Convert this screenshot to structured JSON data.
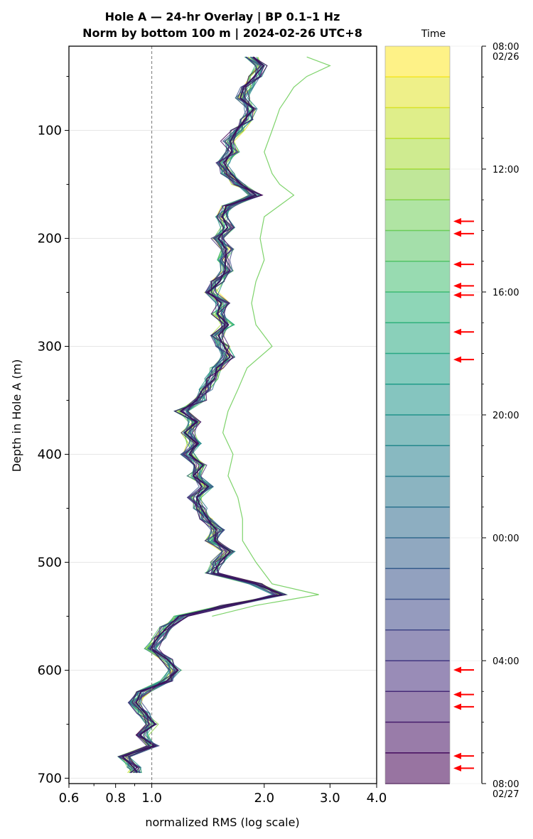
{
  "chart_data": {
    "type": "line",
    "title_line1": "Hole A — 24-hr Overlay  |  BP 0.1–1 Hz",
    "title_line2": "Norm by bottom 100 m  |  2024-02-26 UTC+8",
    "xlabel": "normalized RMS  (log scale)",
    "ylabel": "Depth in Hole A (m)",
    "xscale": "log",
    "xlim": [
      0.6,
      4.0
    ],
    "ylim": [
      705,
      22
    ],
    "y_inverted": true,
    "xticks": [
      0.6,
      0.8,
      1.0,
      2.0,
      3.0,
      4.0
    ],
    "xtick_labels": [
      "0.6",
      "0.8",
      "1.0",
      "2.0",
      "3.0",
      "4.0"
    ],
    "yticks": [
      100,
      200,
      300,
      400,
      500,
      600,
      700
    ],
    "ytick_labels": [
      "100",
      "200",
      "300",
      "400",
      "500",
      "600",
      "700"
    ],
    "reference_line_x": 1.0,
    "grid": "horizontal",
    "num_curves": 24,
    "curve_colormap": "viridis (yellow = earliest, dark purple = latest)",
    "representative_profile": {
      "depth": [
        32,
        40,
        50,
        60,
        70,
        80,
        90,
        100,
        110,
        120,
        130,
        140,
        150,
        160,
        170,
        180,
        190,
        200,
        210,
        220,
        230,
        240,
        250,
        260,
        270,
        280,
        290,
        300,
        310,
        320,
        330,
        340,
        350,
        360,
        370,
        380,
        390,
        400,
        410,
        420,
        430,
        440,
        450,
        460,
        470,
        480,
        490,
        500,
        510,
        520,
        530,
        540,
        550,
        560,
        570,
        580,
        590,
        600,
        610,
        620,
        630,
        640,
        650,
        660,
        670,
        680,
        690,
        695
      ],
      "value": [
        1.85,
        1.95,
        1.9,
        1.8,
        1.75,
        1.85,
        1.8,
        1.7,
        1.6,
        1.65,
        1.55,
        1.6,
        1.7,
        1.9,
        1.6,
        1.55,
        1.6,
        1.5,
        1.6,
        1.55,
        1.6,
        1.5,
        1.45,
        1.55,
        1.5,
        1.6,
        1.5,
        1.55,
        1.6,
        1.5,
        1.45,
        1.4,
        1.35,
        1.2,
        1.3,
        1.25,
        1.3,
        1.25,
        1.35,
        1.3,
        1.4,
        1.3,
        1.35,
        1.4,
        1.5,
        1.45,
        1.6,
        1.5,
        1.45,
        1.9,
        2.2,
        1.6,
        1.2,
        1.1,
        1.05,
        1.0,
        1.1,
        1.15,
        1.1,
        0.95,
        0.9,
        0.95,
        1.0,
        0.95,
        1.0,
        0.85,
        0.9,
        0.9
      ]
    },
    "outlier_profile": {
      "depth": [
        32,
        40,
        50,
        60,
        70,
        80,
        90,
        100,
        120,
        140,
        150,
        160,
        180,
        200,
        220,
        240,
        260,
        280,
        300,
        320,
        340,
        360,
        380,
        400,
        420,
        440,
        460,
        480,
        500,
        520,
        530,
        540,
        550
      ],
      "value": [
        2.6,
        3.0,
        2.6,
        2.4,
        2.3,
        2.2,
        2.15,
        2.1,
        2.0,
        2.1,
        2.2,
        2.4,
        2.0,
        1.95,
        2.0,
        1.9,
        1.85,
        1.9,
        2.1,
        1.8,
        1.7,
        1.6,
        1.55,
        1.65,
        1.6,
        1.7,
        1.75,
        1.75,
        1.9,
        2.1,
        2.8,
        1.9,
        1.45
      ]
    },
    "colorbar": {
      "label": "Time",
      "tick_labels": [
        {
          "time": "08:00",
          "date": "02/26",
          "hours": 0
        },
        {
          "time": "12:00",
          "date": "",
          "hours": 4
        },
        {
          "time": "16:00",
          "date": "",
          "hours": 8
        },
        {
          "time": "20:00",
          "date": "",
          "hours": 12
        },
        {
          "time": "00:00",
          "date": "",
          "hours": 16
        },
        {
          "time": "04:00",
          "date": "",
          "hours": 20
        },
        {
          "time": "08:00",
          "date": "02/27",
          "hours": 24
        }
      ],
      "segments": 24,
      "arrow_markers_hours": [
        5.7,
        6.1,
        7.1,
        7.8,
        8.1,
        9.3,
        10.2,
        20.3,
        21.1,
        21.5,
        23.1,
        23.5
      ],
      "arrow_color": "#ff0000"
    }
  }
}
